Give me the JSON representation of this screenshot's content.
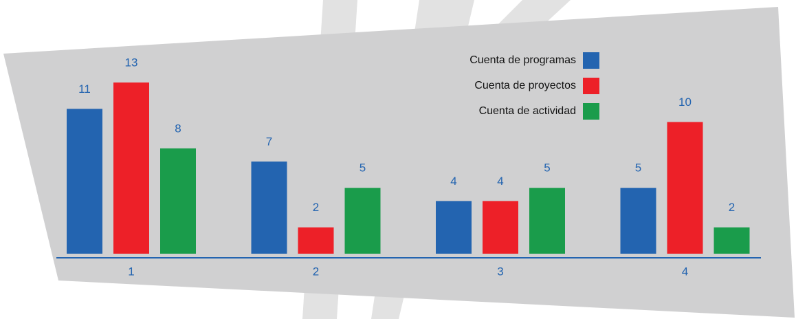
{
  "chart_data": {
    "type": "bar",
    "categories": [
      "1",
      "2",
      "3",
      "4"
    ],
    "series": [
      {
        "name": "Cuenta de programas",
        "color": "#2364b0",
        "values": [
          11,
          7,
          4,
          5
        ]
      },
      {
        "name": "Cuenta de proyectos",
        "color": "#ed2028",
        "values": [
          13,
          2,
          4,
          10
        ]
      },
      {
        "name": "Cuenta de actividad",
        "color": "#1a9c4b",
        "values": [
          8,
          5,
          5,
          2
        ]
      }
    ]
  }
}
